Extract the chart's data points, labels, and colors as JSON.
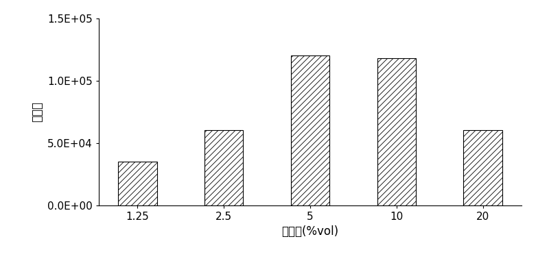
{
  "categories": [
    "1.25",
    "2.5",
    "5",
    "10",
    "20"
  ],
  "values": [
    35000,
    60000,
    120000,
    118000,
    60000
  ],
  "xlabel": "酒精度(%vol)",
  "ylabel": "峰面积",
  "ylim": [
    0,
    150000
  ],
  "yticks": [
    0,
    50000,
    100000,
    150000
  ],
  "ytick_labels": [
    "0.0E+00",
    "5.0E+04",
    "1.0E+05",
    "1.5E+05"
  ],
  "bar_color": "white",
  "hatch": "////",
  "hatch_color": "black",
  "edgecolor": "black",
  "figsize": [
    8.0,
    3.84
  ],
  "dpi": 100,
  "xlabel_fontsize": 12,
  "ylabel_fontsize": 12,
  "tick_fontsize": 11,
  "bar_width": 0.45
}
